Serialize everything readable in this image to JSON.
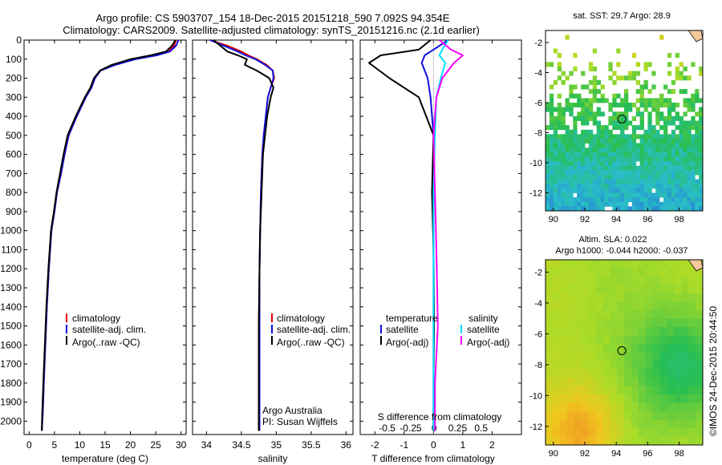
{
  "header": {
    "line1": "Argo profile: CS 5903707_154 18-Dec-2015 20151218_590 7.092S 94.354E",
    "line2": "Climatology: CARS2009. Satellite-adjusted climatology: synTS_20151216.nc (2.1d earlier)"
  },
  "colors": {
    "climatology": "#e00000",
    "satellite": "#1010e0",
    "argo": "#000000",
    "sat_salinity": "#00e0ff",
    "argo_salinity": "#ff00ff"
  },
  "legends": {
    "climatology": "climatology",
    "satellite_adj": "satellite-adj. clim.",
    "argo_raw": "Argo(..raw -QC)",
    "temperature_head": "temperature",
    "salinity_head": "salinity",
    "satellite": "satellite",
    "argo_adj": "Argo(-adj)"
  },
  "credits": {
    "org": "Argo Australia",
    "pi": "PI: Susan Wijffels",
    "stamp": "©IMOS 24-Dec-2015 20:44:50"
  },
  "maps": {
    "sst_title": "sat. SST: 29.7 Argo: 28.9",
    "sla_title1": "Altim. SLA: 0.022",
    "sla_title2": "Argo h1000: -0.044 h2000: -0.037",
    "yticks": [
      "-2",
      "-4",
      "-6",
      "-8",
      "-10",
      "-12"
    ],
    "xticks": [
      "90",
      "92",
      "94",
      "96",
      "98"
    ],
    "float_lon": 94.354,
    "float_lat": -7.092
  },
  "chart_data": [
    {
      "type": "line",
      "xlabel": "temperature (deg C)",
      "ylabel": "",
      "xlim": [
        -1,
        31
      ],
      "ylim": [
        2070,
        0
      ],
      "xticks": [
        0,
        5,
        10,
        15,
        20,
        25,
        30
      ],
      "yticks": [
        0,
        100,
        200,
        300,
        400,
        500,
        600,
        700,
        800,
        900,
        1000,
        1100,
        1200,
        1300,
        1400,
        1500,
        1600,
        1700,
        1800,
        1900,
        2000
      ],
      "series": [
        {
          "name": "climatology",
          "x": [
            29.0,
            28.6,
            27.5,
            25.0,
            21.0,
            17.0,
            14.0,
            13.0,
            12.3,
            11.2,
            10.3,
            9.4,
            8.6,
            7.8,
            7.0,
            6.3,
            5.5,
            5.0,
            4.4,
            3.9,
            3.5,
            3.2,
            2.9,
            2.7,
            2.5
          ],
          "y": [
            0,
            30,
            60,
            80,
            100,
            130,
            160,
            200,
            250,
            300,
            350,
            400,
            450,
            500,
            600,
            700,
            800,
            900,
            1000,
            1200,
            1400,
            1600,
            1800,
            1950,
            2050
          ]
        },
        {
          "name": "satellite-adj. clim.",
          "x": [
            29.5,
            29.0,
            27.8,
            25.2,
            21.0,
            17.0,
            14.1,
            13.0,
            12.3,
            11.2,
            10.3,
            9.4,
            8.6,
            7.8,
            7.0,
            6.3,
            5.5,
            5.0,
            4.4,
            3.9,
            3.5,
            3.2,
            2.9,
            2.7,
            2.5
          ],
          "y": [
            0,
            30,
            60,
            80,
            100,
            130,
            160,
            200,
            250,
            300,
            350,
            400,
            450,
            500,
            600,
            700,
            800,
            900,
            1000,
            1200,
            1400,
            1600,
            1800,
            1950,
            2050
          ]
        },
        {
          "name": "Argo(..raw -QC)",
          "x": [
            28.9,
            28.2,
            27.0,
            24.0,
            20.0,
            16.3,
            14.0,
            12.8,
            12.1,
            11.0,
            10.1,
            9.2,
            8.4,
            7.6,
            6.8,
            6.1,
            5.4,
            4.9,
            4.3,
            3.8,
            3.4,
            3.1,
            2.8,
            2.6,
            2.5
          ],
          "y": [
            0,
            30,
            60,
            80,
            100,
            130,
            160,
            200,
            250,
            300,
            350,
            400,
            450,
            500,
            600,
            700,
            800,
            900,
            1000,
            1200,
            1400,
            1600,
            1800,
            1950,
            2050
          ]
        }
      ]
    },
    {
      "type": "line",
      "xlabel": "salinity",
      "ylabel": "",
      "xlim": [
        33.8,
        36.1
      ],
      "ylim": [
        2070,
        0
      ],
      "xticks": [
        34,
        34.5,
        35,
        35.5,
        36
      ],
      "series": [
        {
          "name": "climatology",
          "x": [
            34.05,
            34.3,
            34.5,
            34.6,
            34.72,
            34.86,
            34.95,
            34.97,
            34.92,
            34.88,
            34.85,
            34.82,
            34.8,
            34.78,
            34.77,
            34.76,
            34.75,
            34.75,
            34.75
          ],
          "y": [
            0,
            30,
            60,
            80,
            100,
            130,
            160,
            200,
            250,
            300,
            400,
            500,
            600,
            800,
            1000,
            1200,
            1500,
            1800,
            2050
          ]
        },
        {
          "name": "satellite-adj. clim.",
          "x": [
            34.05,
            34.25,
            34.45,
            34.56,
            34.7,
            34.84,
            34.95,
            34.96,
            34.92,
            34.88,
            34.85,
            34.82,
            34.8,
            34.78,
            34.77,
            34.76,
            34.76,
            34.76,
            34.76
          ],
          "y": [
            0,
            30,
            60,
            80,
            100,
            130,
            160,
            200,
            250,
            300,
            400,
            500,
            600,
            800,
            1000,
            1200,
            1500,
            1800,
            2050
          ]
        },
        {
          "name": "Argo(..raw -QC)",
          "x": [
            34.1,
            34.2,
            34.3,
            34.45,
            34.58,
            34.55,
            34.72,
            34.9,
            34.96,
            34.92,
            34.87,
            34.84,
            34.81,
            34.79,
            34.77,
            34.76,
            34.75,
            34.75,
            34.75
          ],
          "y": [
            0,
            30,
            60,
            80,
            100,
            130,
            160,
            200,
            250,
            300,
            400,
            500,
            600,
            800,
            1000,
            1200,
            1500,
            1800,
            2050
          ]
        }
      ]
    },
    {
      "type": "line",
      "xlabel": "T difference from climatology",
      "xlabel_top": "S difference from climatology",
      "ylabel": "",
      "xlim": [
        -2.5,
        3.0
      ],
      "ylim": [
        2070,
        0
      ],
      "xticks": [
        -2,
        -1,
        0,
        1,
        2
      ],
      "xticks_s": [
        -0.5,
        -0.25,
        0,
        0.25,
        0.5
      ],
      "series": [
        {
          "name": "temperature satellite",
          "x": [
            0.5,
            0.0,
            -0.3,
            -0.4,
            -0.2,
            -0.1,
            0.0,
            0.0,
            0.0,
            0.0,
            0.0,
            0.0
          ],
          "y": [
            0,
            50,
            80,
            120,
            200,
            300,
            500,
            800,
            1100,
            1500,
            1800,
            2050
          ]
        },
        {
          "name": "temperature Argo(-adj)",
          "x": [
            -0.1,
            -0.5,
            -1.8,
            -2.2,
            -1.5,
            -0.5,
            0.0,
            -0.05,
            0.0,
            0.02,
            0.0,
            0.0
          ],
          "y": [
            0,
            50,
            80,
            120,
            200,
            300,
            500,
            800,
            1100,
            1500,
            1800,
            2050
          ]
        },
        {
          "name": "salinity satellite",
          "x": [
            0.5,
            0.3,
            0.2,
            0.4,
            0.25,
            0.1,
            0.05,
            0.0,
            0.0,
            0.0,
            0.0,
            0.0
          ],
          "y": [
            0,
            50,
            80,
            120,
            200,
            300,
            500,
            800,
            1100,
            1500,
            1800,
            2050
          ]
        },
        {
          "name": "salinity Argo(-adj)",
          "x": [
            0.2,
            0.6,
            1.0,
            0.7,
            0.3,
            0.1,
            0.0,
            0.05,
            0.1,
            0.15,
            0.05,
            0.05
          ],
          "y": [
            0,
            50,
            80,
            120,
            200,
            300,
            500,
            800,
            1100,
            1500,
            1800,
            2050
          ]
        }
      ]
    }
  ]
}
